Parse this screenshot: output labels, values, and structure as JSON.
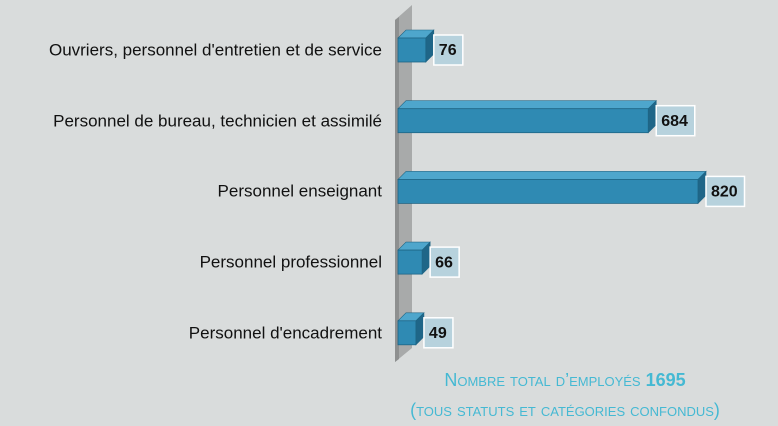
{
  "chart_data": {
    "type": "bar",
    "categories": [
      "Ouvriers, personnel d'entretien et de service",
      "Personnel de bureau, technicien et assimilé",
      "Personnel enseignant",
      "Personnel professionnel",
      "Personnel d'encadrement"
    ],
    "values": [
      76,
      684,
      820,
      66,
      49
    ],
    "color": "#2f8ab3",
    "footer": {
      "label": "Nombre total d’employés",
      "total": 1695,
      "note": "(tous statuts et catégories confondus)"
    }
  }
}
